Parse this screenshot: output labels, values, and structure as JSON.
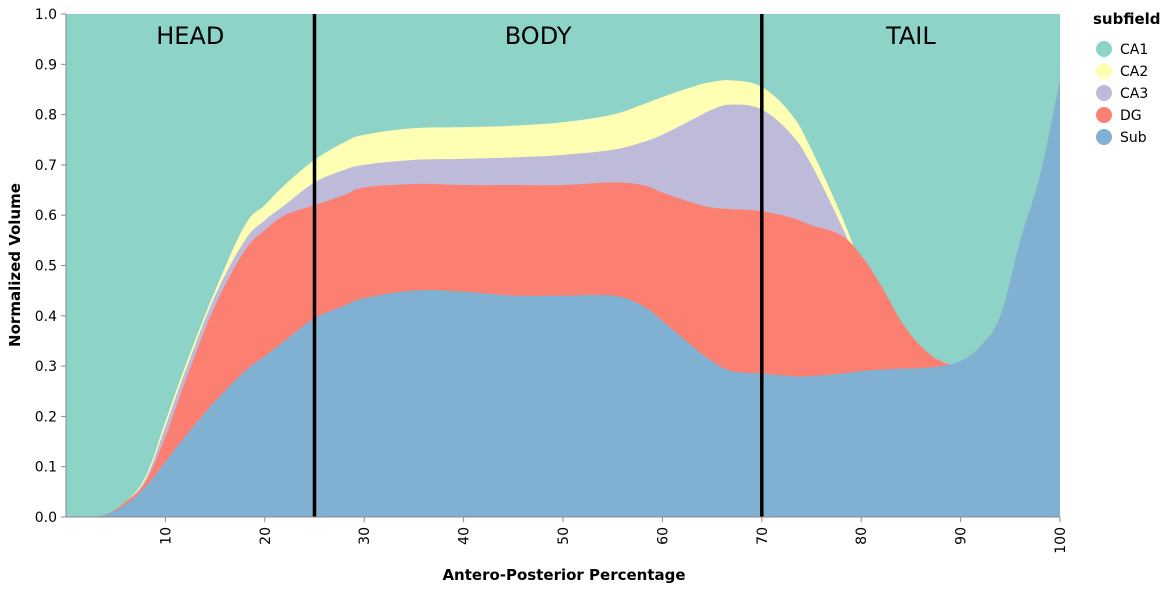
{
  "chart_data": {
    "type": "area",
    "stacked": "normalize",
    "xlabel": "Antero-Posterior Percentage",
    "ylabel": "Normalized Volume",
    "xlim": [
      0,
      100
    ],
    "ylim": [
      0,
      1
    ],
    "x_ticks": [
      10,
      20,
      30,
      40,
      50,
      60,
      70,
      80,
      90,
      100
    ],
    "y_ticks": [
      0.0,
      0.1,
      0.2,
      0.3,
      0.4,
      0.5,
      0.6,
      0.7,
      0.8,
      0.9,
      1.0
    ],
    "y_tick_labels": [
      "0.0",
      "0.1",
      "0.2",
      "0.3",
      "0.4",
      "0.5",
      "0.6",
      "0.7",
      "0.8",
      "0.9",
      "1.0"
    ],
    "grid": false,
    "legend": {
      "title": "subfield",
      "position": "right",
      "items": [
        "CA1",
        "CA2",
        "CA3",
        "DG",
        "Sub"
      ]
    },
    "regions": [
      {
        "label": "HEAD",
        "x_center": 12.5
      },
      {
        "label": "BODY",
        "x_center": 47.5
      },
      {
        "label": "TAIL",
        "x_center": 85
      }
    ],
    "dividers": [
      25,
      70
    ],
    "x": [
      0,
      2,
      4,
      6,
      8,
      10,
      12,
      15,
      18,
      20,
      22,
      25,
      28,
      30,
      35,
      40,
      45,
      50,
      55,
      58,
      60,
      63,
      65,
      67,
      70,
      73,
      75,
      78,
      80,
      82,
      84,
      86,
      88,
      90,
      92,
      94,
      96,
      98,
      100
    ],
    "cumulative_top": {
      "Sub": [
        0.0,
        0.0,
        0.005,
        0.025,
        0.06,
        0.11,
        0.16,
        0.23,
        0.29,
        0.32,
        0.35,
        0.395,
        0.42,
        0.435,
        0.45,
        0.448,
        0.44,
        0.44,
        0.44,
        0.42,
        0.39,
        0.34,
        0.31,
        0.29,
        0.285,
        0.28,
        0.28,
        0.285,
        0.29,
        0.293,
        0.295,
        0.296,
        0.3,
        0.31,
        0.34,
        0.4,
        0.55,
        0.68,
        0.87
      ],
      "DG": [
        0.0,
        0.0,
        0.005,
        0.03,
        0.07,
        0.16,
        0.27,
        0.42,
        0.53,
        0.57,
        0.6,
        0.62,
        0.64,
        0.655,
        0.662,
        0.66,
        0.66,
        0.66,
        0.665,
        0.66,
        0.645,
        0.625,
        0.615,
        0.612,
        0.608,
        0.595,
        0.58,
        0.56,
        0.52,
        0.46,
        0.39,
        0.34,
        0.31,
        0.305,
        0.34,
        0.4,
        0.55,
        0.68,
        0.87
      ],
      "CA3": [
        0.0,
        0.0,
        0.005,
        0.03,
        0.075,
        0.18,
        0.29,
        0.44,
        0.55,
        0.59,
        0.62,
        0.665,
        0.69,
        0.7,
        0.71,
        0.712,
        0.715,
        0.72,
        0.73,
        0.745,
        0.76,
        0.79,
        0.81,
        0.82,
        0.81,
        0.76,
        0.7,
        0.58,
        0.49,
        0.41,
        0.35,
        0.32,
        0.31,
        0.305,
        0.34,
        0.4,
        0.55,
        0.68,
        0.87
      ],
      "CA2": [
        0.0,
        0.0,
        0.005,
        0.03,
        0.08,
        0.19,
        0.3,
        0.45,
        0.58,
        0.62,
        0.66,
        0.71,
        0.745,
        0.76,
        0.773,
        0.775,
        0.778,
        0.785,
        0.8,
        0.82,
        0.835,
        0.855,
        0.865,
        0.868,
        0.855,
        0.8,
        0.73,
        0.6,
        0.5,
        0.415,
        0.355,
        0.32,
        0.31,
        0.305,
        0.34,
        0.4,
        0.55,
        0.68,
        0.87
      ],
      "CA1": [
        1.0,
        1.0,
        1.0,
        1.0,
        1.0,
        1.0,
        1.0,
        1.0,
        1.0,
        1.0,
        1.0,
        1.0,
        1.0,
        1.0,
        1.0,
        1.0,
        1.0,
        1.0,
        1.0,
        1.0,
        1.0,
        1.0,
        1.0,
        1.0,
        1.0,
        1.0,
        1.0,
        1.0,
        1.0,
        1.0,
        1.0,
        1.0,
        1.0,
        1.0,
        1.0,
        1.0,
        1.0,
        1.0,
        1.0
      ]
    },
    "series": [
      {
        "name": "CA1",
        "color": "#8dd3c7"
      },
      {
        "name": "CA2",
        "color": "#ffffb3"
      },
      {
        "name": "CA3",
        "color": "#bebada"
      },
      {
        "name": "DG",
        "color": "#fb8072"
      },
      {
        "name": "Sub",
        "color": "#80b1d3"
      }
    ]
  }
}
